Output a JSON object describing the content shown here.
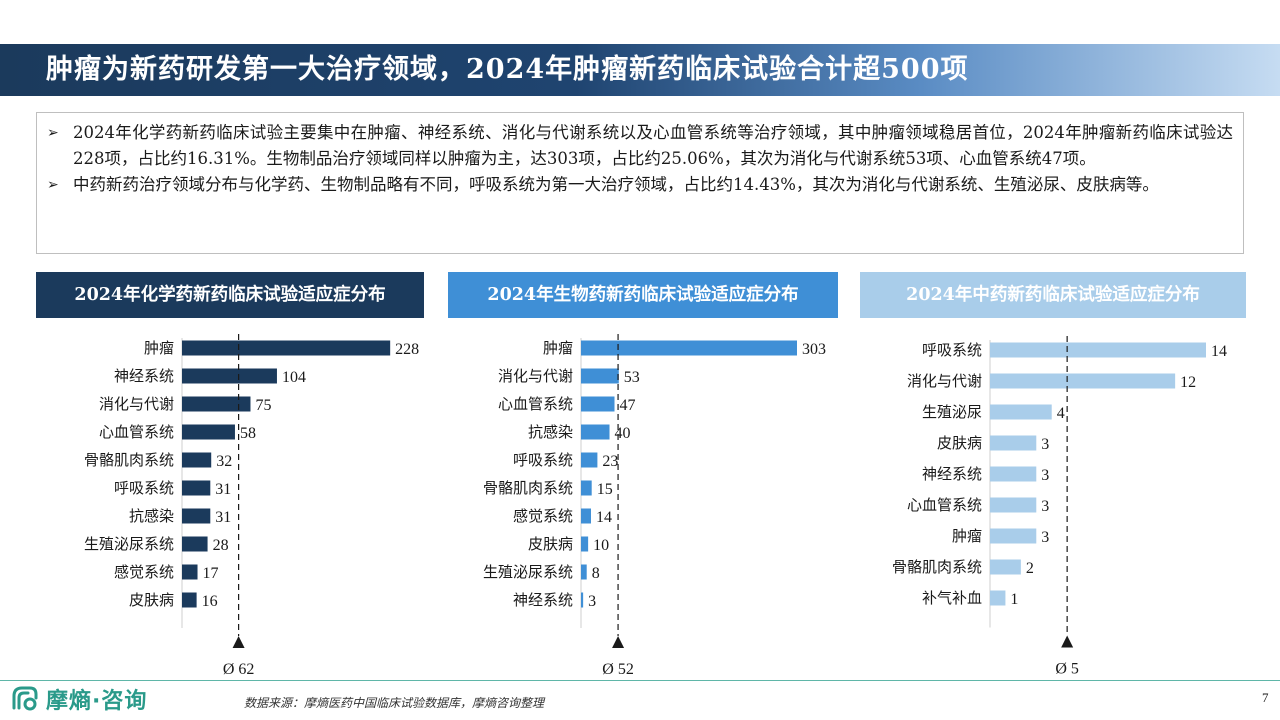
{
  "title": "肿瘤为新药研发第一大治疗领域，2024年肿瘤新药临床试验合计超500项",
  "summary": [
    {
      "arrow": "➢",
      "text": "2024年化学药新药临床试验主要集中在肿瘤、神经系统、消化与代谢系统以及心血管系统等治疗领域，其中肿瘤领域稳居首位，2024年肿瘤新药临床试验达228项，占比约16.31%。生物制品治疗领域同样以肿瘤为主，达303项，占比约25.06%，其次为消化与代谢系统53项、心血管系统47项。"
    },
    {
      "arrow": "➢",
      "text": "中药新药治疗领域分布与化学药、生物制品略有不同，呼吸系统为第一大治疗领域，占比约14.43%，其次为消化与代谢系统、生殖泌尿、皮肤病等。"
    }
  ],
  "colors": {
    "chem": "#1b3a5c",
    "bio": "#3f8fd6",
    "tcm": "#a9cdea"
  },
  "chart_data": [
    {
      "type": "bar",
      "orientation": "horizontal",
      "title": "2024年化学药新药临床试验适应症分布",
      "categories": [
        "肿瘤",
        "神经系统",
        "消化与代谢",
        "心血管系统",
        "骨骼肌肉系统",
        "呼吸系统",
        "抗感染",
        "生殖泌尿系统",
        "感觉系统",
        "皮肤病"
      ],
      "values": [
        228,
        104,
        75,
        58,
        32,
        31,
        31,
        28,
        17,
        16
      ],
      "average": 62,
      "average_label": "Ø 62",
      "xlim": [
        0,
        230
      ],
      "color": "#1b3a5c"
    },
    {
      "type": "bar",
      "orientation": "horizontal",
      "title": "2024年生物药新药临床试验适应症分布",
      "categories": [
        "肿瘤",
        "消化与代谢",
        "心血管系统",
        "抗感染",
        "呼吸系统",
        "骨骼肌肉系统",
        "感觉系统",
        "皮肤病",
        "生殖泌尿系统",
        "神经系统"
      ],
      "values": [
        303,
        53,
        47,
        40,
        23,
        15,
        14,
        10,
        8,
        3
      ],
      "average": 52,
      "average_label": "Ø 52",
      "xlim": [
        0,
        303
      ],
      "color": "#3f8fd6"
    },
    {
      "type": "bar",
      "orientation": "horizontal",
      "title": "2024年中药新药临床试验适应症分布",
      "categories": [
        "呼吸系统",
        "消化与代谢",
        "生殖泌尿",
        "皮肤病",
        "神经系统",
        "心血管系统",
        "肿瘤",
        "骨骼肌肉系统",
        "补气补血"
      ],
      "values": [
        14,
        12,
        4,
        3,
        3,
        3,
        3,
        2,
        1
      ],
      "average": 5,
      "average_label": "Ø 5",
      "xlim": [
        0,
        14
      ],
      "color": "#a9cdea"
    }
  ],
  "footer": {
    "logo_text": "摩熵·咨询",
    "source": "数据来源：摩熵医药中国临床试验数据库，摩熵咨询整理",
    "page": "7"
  }
}
